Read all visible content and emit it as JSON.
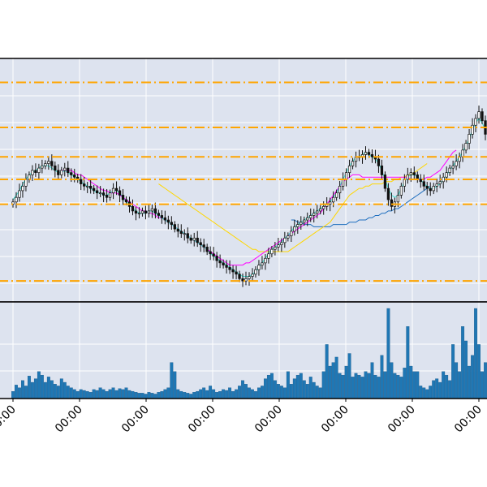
{
  "chart_data": {
    "type": "candlestick",
    "title": "",
    "xlabel": "",
    "ylabel": "",
    "grid": true,
    "x_tick_labels": [
      "00:00",
      "00:00",
      "00:00",
      "00:00",
      "00:00",
      "00:00",
      "00:00",
      "00:00"
    ],
    "price_range": [
      0,
      100
    ],
    "volume_range": [
      0,
      100
    ],
    "horizontal_levels": [
      93,
      73,
      60,
      50,
      39,
      5
    ],
    "colors": {
      "panel_bg": "#dde3ef",
      "grid": "#ffffff",
      "candle_body": "#111111",
      "level_line": "#ffa500",
      "volume_bar": "#1f77b4",
      "ma_short": "#40e0d0",
      "ma_mid": "#ff00ff",
      "ma_long": "#ffd700",
      "ma_longest": "#1f6fbf"
    },
    "close_series": [
      40,
      42,
      45,
      47,
      50,
      52,
      54,
      53,
      55,
      56,
      57,
      58,
      56,
      54,
      52,
      54,
      55,
      53,
      52,
      51,
      50,
      48,
      47,
      47,
      46,
      45,
      44,
      44,
      43,
      42,
      44,
      46,
      45,
      43,
      41,
      40,
      38,
      36,
      35,
      35,
      36,
      35,
      36,
      37,
      35,
      34,
      33,
      32,
      31,
      30,
      28,
      27,
      26,
      26,
      24,
      23,
      24,
      22,
      21,
      20,
      18,
      17,
      16,
      14,
      13,
      12,
      11,
      10,
      9,
      8,
      6,
      5,
      6,
      7,
      8,
      10,
      12,
      13,
      15,
      17,
      19,
      20,
      21,
      22,
      24,
      25,
      27,
      29,
      30,
      31,
      32,
      33,
      34,
      35,
      36,
      37,
      38,
      39,
      40,
      42,
      44,
      47,
      50,
      53,
      56,
      58,
      60,
      60,
      61,
      62,
      61,
      60,
      59,
      56,
      52,
      46,
      41,
      38,
      40,
      43,
      47,
      50,
      52,
      53,
      52,
      50,
      49,
      47,
      46,
      45,
      47,
      48,
      49,
      51,
      53,
      55,
      56,
      58,
      60,
      63,
      66,
      70,
      74,
      77,
      80,
      76,
      70
    ],
    "ma_short": [
      41,
      43,
      45,
      48,
      50,
      52,
      53,
      54,
      55,
      56,
      56,
      56,
      55,
      54,
      53,
      53,
      54,
      53,
      52,
      51,
      50,
      49,
      48,
      47,
      46,
      45,
      44,
      44,
      43,
      43,
      44,
      45,
      45,
      44,
      42,
      40,
      39,
      37,
      36,
      35,
      35,
      35,
      36,
      36,
      35,
      34,
      33,
      32,
      31,
      30,
      29,
      28,
      27,
      26,
      25,
      24,
      23,
      22,
      21,
      20,
      19,
      17,
      16,
      15,
      14,
      13,
      12,
      11,
      10,
      9,
      8,
      7,
      7,
      7,
      8,
      9,
      11,
      13,
      15,
      17,
      19,
      20,
      21,
      22,
      24,
      25,
      27,
      29,
      30,
      31,
      32,
      33,
      34,
      35,
      36,
      37,
      38,
      39,
      40,
      42,
      44,
      47,
      50,
      53,
      56,
      58,
      60,
      60,
      61,
      62,
      61,
      60,
      59,
      57,
      54,
      50,
      46,
      43,
      42,
      43,
      46,
      49,
      51,
      52,
      52,
      51,
      50,
      48,
      47,
      46,
      46,
      47,
      48,
      50,
      52,
      54,
      56,
      58,
      60,
      62,
      65,
      68,
      72,
      75,
      77,
      75,
      72
    ],
    "ma_mid": [
      null,
      null,
      null,
      null,
      null,
      null,
      null,
      null,
      null,
      null,
      null,
      null,
      null,
      null,
      null,
      54,
      54,
      54,
      54,
      53,
      52,
      52,
      51,
      50,
      49,
      48,
      47,
      46,
      45,
      45,
      44,
      44,
      44,
      43,
      42,
      41,
      40,
      39,
      38,
      37,
      36,
      36,
      35,
      35,
      34,
      33,
      33,
      32,
      31,
      30,
      29,
      28,
      27,
      26,
      25,
      24,
      23,
      22,
      21,
      20,
      19,
      18,
      17,
      16,
      15,
      14,
      13,
      12,
      12,
      12,
      12,
      12,
      13,
      13,
      14,
      15,
      16,
      17,
      18,
      19,
      20,
      21,
      22,
      23,
      24,
      25,
      26,
      27,
      28,
      29,
      30,
      31,
      32,
      33,
      34,
      35,
      37,
      39,
      41,
      43,
      45,
      47,
      49,
      50,
      51,
      52,
      52,
      52,
      51,
      51,
      51,
      51,
      51,
      51,
      51,
      51,
      51,
      51,
      51,
      51,
      51,
      51,
      51,
      50,
      50,
      50,
      50,
      50,
      51,
      51,
      52,
      53,
      54,
      56,
      58,
      60,
      62,
      63
    ],
    "ma_long": [
      null,
      null,
      null,
      null,
      null,
      null,
      null,
      null,
      null,
      null,
      null,
      null,
      null,
      null,
      null,
      null,
      null,
      null,
      null,
      null,
      null,
      null,
      null,
      null,
      null,
      null,
      null,
      null,
      null,
      null,
      null,
      null,
      null,
      null,
      null,
      null,
      null,
      null,
      null,
      null,
      null,
      null,
      null,
      null,
      null,
      48,
      47,
      46,
      45,
      44,
      43,
      42,
      41,
      40,
      39,
      38,
      37,
      36,
      35,
      34,
      33,
      32,
      31,
      30,
      29,
      28,
      27,
      26,
      25,
      24,
      23,
      22,
      21,
      20,
      19,
      19,
      18,
      18,
      18,
      18,
      18,
      18,
      18,
      18,
      18,
      18,
      19,
      20,
      21,
      22,
      23,
      24,
      25,
      26,
      27,
      28,
      29,
      30,
      31,
      33,
      35,
      37,
      39,
      41,
      43,
      44,
      45,
      46,
      46,
      47,
      47,
      48,
      48,
      48,
      48,
      49,
      49,
      49,
      50,
      50,
      51,
      51,
      52,
      52,
      53,
      54,
      55,
      56,
      57
    ],
    "ma_longest": [
      null,
      null,
      null,
      null,
      null,
      null,
      null,
      null,
      null,
      null,
      null,
      null,
      null,
      null,
      null,
      null,
      null,
      null,
      null,
      null,
      null,
      null,
      null,
      null,
      null,
      null,
      null,
      null,
      null,
      null,
      null,
      null,
      null,
      null,
      null,
      null,
      null,
      null,
      null,
      null,
      null,
      null,
      null,
      null,
      null,
      null,
      null,
      null,
      null,
      null,
      null,
      null,
      null,
      null,
      null,
      null,
      null,
      null,
      null,
      null,
      null,
      null,
      null,
      null,
      null,
      null,
      null,
      null,
      null,
      null,
      null,
      null,
      null,
      null,
      null,
      null,
      null,
      null,
      null,
      null,
      null,
      null,
      null,
      null,
      null,
      null,
      32,
      32,
      31,
      31,
      30,
      30,
      30,
      29,
      29,
      29,
      29,
      29,
      29,
      30,
      30,
      30,
      30,
      30,
      31,
      31,
      31,
      32,
      32,
      32,
      33,
      33,
      34,
      34,
      35,
      35,
      36,
      36,
      37,
      37,
      38,
      39,
      40,
      41,
      42,
      43,
      44,
      45,
      46,
      47
    ],
    "volume_series": [
      8,
      15,
      12,
      20,
      14,
      25,
      18,
      22,
      30,
      26,
      18,
      24,
      20,
      16,
      14,
      22,
      18,
      14,
      12,
      10,
      8,
      10,
      9,
      8,
      7,
      10,
      9,
      12,
      10,
      8,
      10,
      12,
      9,
      11,
      10,
      12,
      9,
      8,
      7,
      6,
      6,
      5,
      7,
      6,
      5,
      7,
      8,
      10,
      12,
      40,
      30,
      10,
      8,
      7,
      6,
      5,
      7,
      8,
      10,
      12,
      9,
      14,
      10,
      7,
      8,
      10,
      9,
      12,
      8,
      10,
      14,
      20,
      16,
      12,
      10,
      8,
      12,
      14,
      22,
      26,
      28,
      20,
      16,
      14,
      12,
      30,
      16,
      22,
      26,
      28,
      20,
      16,
      24,
      18,
      14,
      12,
      30,
      60,
      36,
      40,
      46,
      28,
      26,
      36,
      50,
      24,
      28,
      26,
      24,
      30,
      28,
      40,
      26,
      24,
      48,
      30,
      100,
      40,
      28,
      26,
      24,
      34,
      80,
      36,
      30,
      30,
      14,
      12,
      10,
      14,
      20,
      22,
      18,
      30,
      26,
      20,
      60,
      40,
      30,
      80,
      64,
      36,
      48,
      100,
      60,
      30,
      40
    ]
  }
}
